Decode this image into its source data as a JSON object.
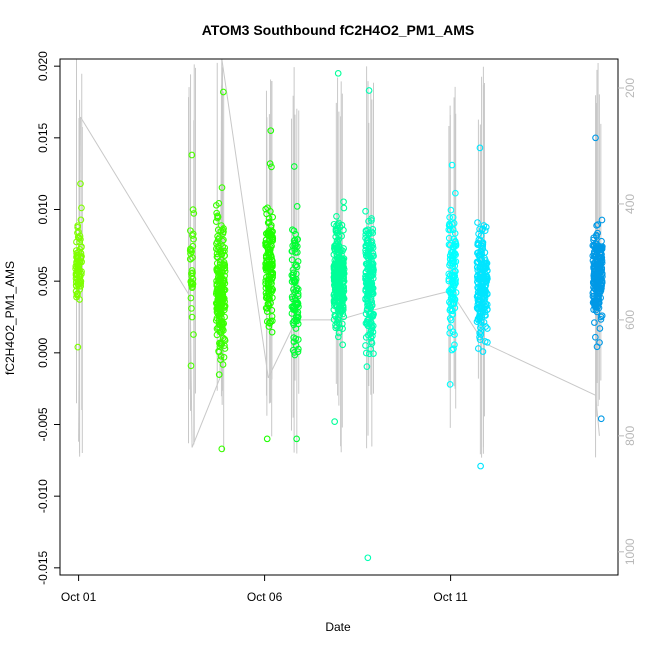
{
  "chart_data": {
    "type": "scatter",
    "title": "ATOM3 Southbound fC2H4O2_PM1_AMS",
    "xlabel": "Date",
    "ylabel": "fC2H4O2_PM1_AMS",
    "x_ticks": [
      "Oct 01",
      "Oct 06",
      "Oct 11"
    ],
    "x_tick_days": [
      1,
      6,
      11
    ],
    "xlim": [
      0.5,
      15.5
    ],
    "ylim": [
      -0.0155,
      0.0205
    ],
    "y_ticks": [
      -0.015,
      -0.01,
      -0.005,
      0.0,
      0.005,
      0.01,
      0.015,
      0.02
    ],
    "y_tick_labels": [
      "-0.015",
      "-0.010",
      "-0.005",
      "0.000",
      "0.005",
      "0.010",
      "0.015",
      "0.020"
    ],
    "right_axis": {
      "color": "#b8b8b8",
      "ylim": [
        1040,
        150
      ],
      "ticks": [
        200,
        400,
        600,
        800,
        1000
      ],
      "tick_labels": [
        "200",
        "400",
        "600",
        "800",
        "1000"
      ]
    },
    "marker": "open-circle",
    "clusters": [
      {
        "day": 1.0,
        "width": 0.08,
        "center": 0.0062,
        "spread": 0.0015,
        "lo": 0.0004,
        "hi": 0.0118,
        "n": 90,
        "color": "#7fff00"
      },
      {
        "day": 4.05,
        "width": 0.05,
        "center": 0.0057,
        "spread": 0.0019,
        "lo": -0.0009,
        "hi": 0.0138,
        "n": 35,
        "color": "#4cff00"
      },
      {
        "day": 4.82,
        "width": 0.12,
        "center": 0.0045,
        "spread": 0.0023,
        "lo": -0.0067,
        "hi": 0.0182,
        "n": 220,
        "color": "#3aff00"
      },
      {
        "day": 6.12,
        "width": 0.1,
        "center": 0.006,
        "spread": 0.002,
        "lo": -0.006,
        "hi": 0.0155,
        "n": 140,
        "color": "#1eff00"
      },
      {
        "day": 6.82,
        "width": 0.09,
        "center": 0.0045,
        "spread": 0.0022,
        "lo": -0.006,
        "hi": 0.013,
        "n": 90,
        "color": "#00ff33"
      },
      {
        "day": 8.0,
        "width": 0.14,
        "center": 0.0052,
        "spread": 0.0018,
        "lo": -0.0048,
        "hi": 0.0195,
        "n": 280,
        "color": "#00ff99"
      },
      {
        "day": 8.82,
        "width": 0.11,
        "center": 0.005,
        "spread": 0.002,
        "lo": -0.0143,
        "hi": 0.0183,
        "n": 190,
        "color": "#00ffb3"
      },
      {
        "day": 11.05,
        "width": 0.1,
        "center": 0.0055,
        "spread": 0.0022,
        "lo": -0.0022,
        "hi": 0.0131,
        "n": 110,
        "color": "#00ffff"
      },
      {
        "day": 11.85,
        "width": 0.14,
        "center": 0.005,
        "spread": 0.002,
        "lo": -0.0079,
        "hi": 0.0143,
        "n": 190,
        "color": "#00e5ff"
      },
      {
        "day": 14.95,
        "width": 0.13,
        "center": 0.0055,
        "spread": 0.0018,
        "lo": -0.0046,
        "hi": 0.015,
        "n": 200,
        "color": "#0099e6"
      }
    ],
    "altitude_trace": {
      "color": "#c8c8c8",
      "segments": [
        {
          "from": [
            1.0,
            810
          ],
          "to": [
            1.05,
            250
          ]
        },
        {
          "from": [
            1.05,
            250
          ],
          "to": [
            4.0,
            560
          ]
        },
        {
          "from": [
            4.0,
            560
          ],
          "to": [
            4.05,
            820
          ]
        },
        {
          "from": [
            4.05,
            820
          ],
          "to": [
            4.8,
            700
          ]
        },
        {
          "from": [
            4.8,
            700
          ],
          "to": [
            4.85,
            150
          ]
        },
        {
          "from": [
            4.85,
            150
          ],
          "to": [
            6.1,
            700
          ]
        },
        {
          "from": [
            6.1,
            700
          ],
          "to": [
            6.85,
            600
          ]
        },
        {
          "from": [
            6.85,
            600
          ],
          "to": [
            8.0,
            600
          ]
        },
        {
          "from": [
            8.0,
            600
          ],
          "to": [
            8.8,
            585
          ]
        },
        {
          "from": [
            8.8,
            585
          ],
          "to": [
            11.0,
            550
          ]
        },
        {
          "from": [
            11.0,
            550
          ],
          "to": [
            11.9,
            640
          ]
        },
        {
          "from": [
            11.9,
            640
          ],
          "to": [
            14.9,
            730
          ]
        },
        {
          "from": [
            14.9,
            730
          ],
          "to": [
            15.0,
            800
          ]
        }
      ],
      "spikes": [
        1.05,
        4.05,
        4.82,
        6.12,
        6.82,
        8.0,
        8.82,
        11.05,
        11.85,
        14.95
      ]
    }
  }
}
